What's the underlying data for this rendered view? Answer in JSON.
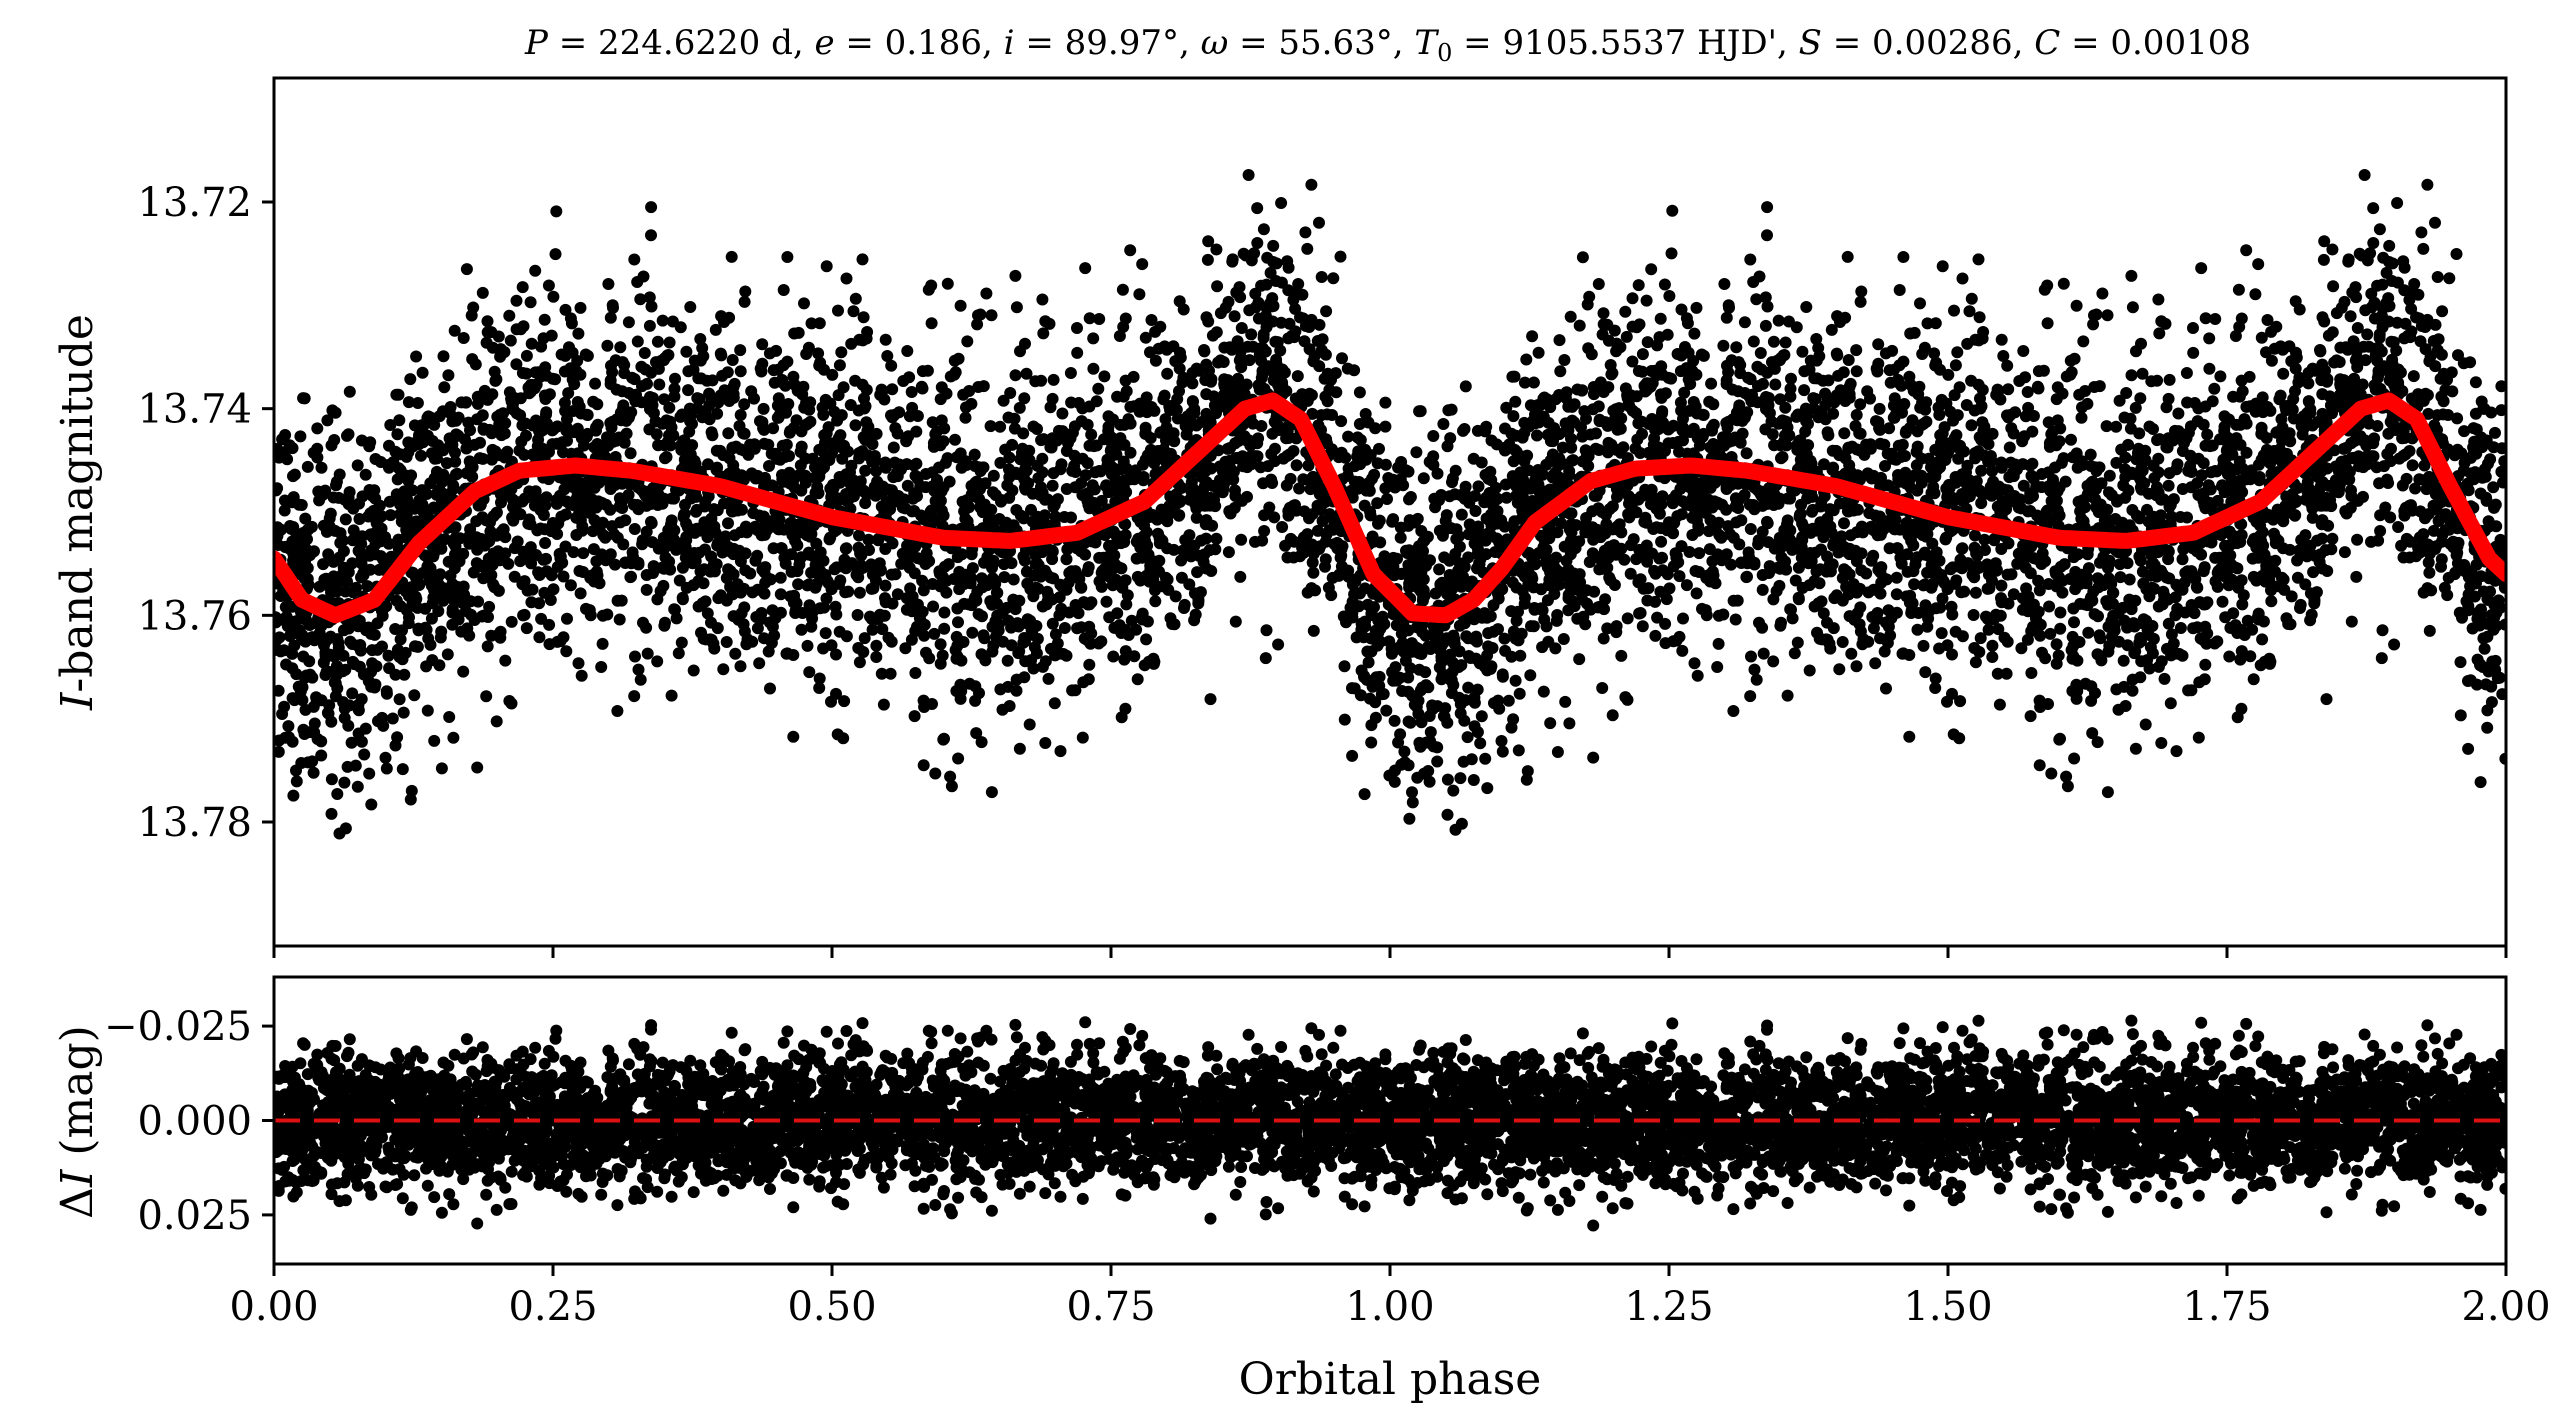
{
  "chart_data": [
    {
      "panel": "top",
      "type": "scatter",
      "title": "P = 224.6220 d, e = 0.186, i = 89.97°, ω = 55.63°, T0 = 9105.5537 HJD', S = 0.00286, C = 0.00108",
      "title_parts": {
        "P": "P",
        "P_val": " = 224.6220 d, ",
        "e": "e",
        "e_val": " = 0.186, ",
        "i": "i",
        "i_val": " = 89.97°, ",
        "w": "ω",
        "w_val": " = 55.63°, ",
        "T": "T",
        "T_sub": "0",
        "T_val": " = 9105.5537 HJD', ",
        "S": "S",
        "S_val": " = 0.00286, ",
        "C": "C",
        "C_val": " = 0.00108"
      },
      "xlabel": "Orbital phase",
      "ylabel": "I-band magnitude",
      "ylabel_parts": {
        "italic": "I",
        "rest": "-band magnitude"
      },
      "xlim": [
        0.0,
        2.0
      ],
      "ylim": [
        13.792,
        13.708
      ],
      "y_inverted": true,
      "yticks": [
        "13.72",
        "13.74",
        "13.76",
        "13.78"
      ],
      "ytick_values": [
        13.72,
        13.74,
        13.76,
        13.78
      ],
      "xticks_shown": false,
      "grid": false,
      "series": [
        {
          "style": "black points (dense photometry, phase-folded and repeated)",
          "color": "#000000",
          "scatter_sd_mag": 0.0085
        },
        {
          "style": "model curve",
          "color": "#ff0000",
          "x": [
            0.0,
            0.025,
            0.055,
            0.09,
            0.13,
            0.18,
            0.22,
            0.27,
            0.32,
            0.4,
            0.5,
            0.6,
            0.66,
            0.72,
            0.78,
            0.83,
            0.87,
            0.895,
            0.92,
            0.95,
            0.985,
            1.02,
            1.05,
            1.075,
            1.1,
            1.13,
            1.18,
            1.22,
            1.27,
            1.32,
            1.4,
            1.5,
            1.6,
            1.66,
            1.72,
            1.78,
            1.83,
            1.87,
            1.895,
            1.92,
            1.95,
            1.985,
            2.0
          ],
          "y": [
            13.7545,
            13.7585,
            13.76,
            13.7585,
            13.753,
            13.748,
            13.746,
            13.7455,
            13.746,
            13.7475,
            13.7505,
            13.7525,
            13.7528,
            13.752,
            13.749,
            13.744,
            13.74,
            13.7392,
            13.741,
            13.7475,
            13.756,
            13.7598,
            13.76,
            13.7585,
            13.7555,
            13.751,
            13.747,
            13.7458,
            13.7455,
            13.746,
            13.7475,
            13.7505,
            13.7525,
            13.7528,
            13.752,
            13.749,
            13.744,
            13.74,
            13.7392,
            13.741,
            13.7475,
            13.7545,
            13.756
          ]
        }
      ]
    },
    {
      "panel": "bottom",
      "type": "scatter",
      "xlabel": "Orbital phase",
      "ylabel": "ΔI (mag)",
      "ylabel_parts": {
        "delta": "Δ",
        "italic": "I",
        "rest": " (mag)"
      },
      "xlim": [
        0.0,
        2.0
      ],
      "ylim": [
        0.038,
        -0.038
      ],
      "y_inverted": true,
      "xticks": [
        "0.00",
        "0.25",
        "0.50",
        "0.75",
        "1.00",
        "1.25",
        "1.50",
        "1.75",
        "2.00"
      ],
      "xtick_values": [
        0.0,
        0.25,
        0.5,
        0.75,
        1.0,
        1.25,
        1.5,
        1.75,
        2.0
      ],
      "yticks": [
        "−0.025",
        "0.000",
        "0.025"
      ],
      "ytick_values": [
        -0.025,
        0.0,
        0.025
      ],
      "grid": false,
      "series": [
        {
          "style": "black points (residuals)",
          "color": "#000000",
          "scatter_sd_mag": 0.0085
        },
        {
          "style": "dashed zero line",
          "color": "#dd1111",
          "y": 0.0
        }
      ]
    }
  ]
}
